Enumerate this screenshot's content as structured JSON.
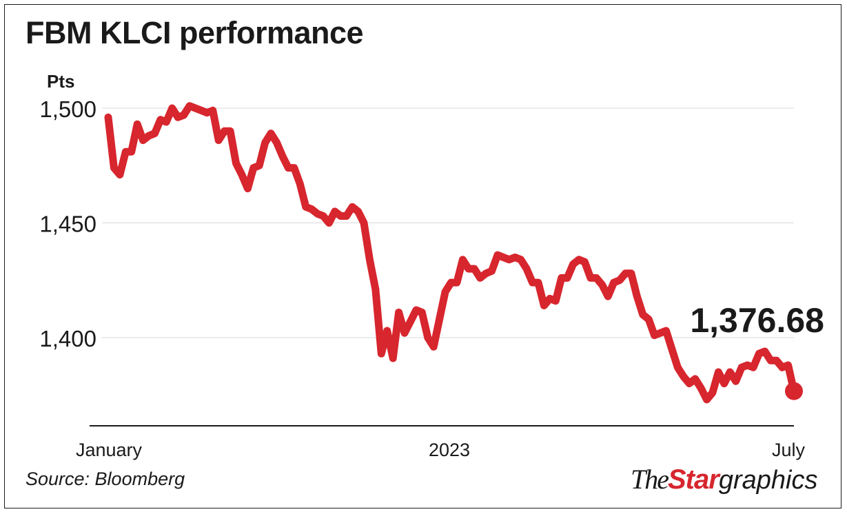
{
  "title": "FBM KLCI performance",
  "source": "Source: Bloomberg",
  "logo": {
    "the": "The",
    "star": "Star",
    "graphics": "graphics"
  },
  "colors": {
    "line": "#d7262e",
    "text": "#1a1a1a",
    "grid": "#d9d9d9",
    "axis": "#1a1a1a"
  },
  "chart_data": {
    "type": "line",
    "title": "FBM KLCI performance",
    "ylabel": "Pts",
    "xlabel": "",
    "ylim": [
      1366,
      1500
    ],
    "yticks": [
      1400,
      1450,
      1500
    ],
    "ytick_labels": [
      "1,400",
      "1,450",
      "1,500"
    ],
    "x_ticks": [
      {
        "label": "January",
        "pos": 0
      },
      {
        "label": "2023",
        "pos": 0.5
      },
      {
        "label": "July",
        "pos": 1
      }
    ],
    "grid": true,
    "end_label": "1,376.68",
    "series": [
      {
        "values": [
          1496,
          1474,
          1471,
          1481,
          1481,
          1493,
          1486,
          1488,
          1489,
          1495,
          1494,
          1500,
          1496,
          1497,
          1501,
          1500,
          1499,
          1498,
          1499,
          1486,
          1490,
          1490,
          1476,
          1471,
          1465,
          1474,
          1475,
          1485,
          1489,
          1485,
          1479,
          1474,
          1474,
          1467,
          1457,
          1456,
          1454,
          1453,
          1450,
          1455,
          1453,
          1453,
          1457,
          1455,
          1450,
          1434,
          1421,
          1393,
          1403,
          1391,
          1411,
          1402,
          1407,
          1412,
          1411,
          1400,
          1396,
          1408,
          1420,
          1424,
          1424,
          1434,
          1430,
          1430,
          1426,
          1428,
          1429,
          1436,
          1435,
          1434,
          1435,
          1434,
          1430,
          1424,
          1424,
          1414,
          1417,
          1416,
          1426,
          1426,
          1432,
          1434,
          1433,
          1426,
          1426,
          1423,
          1418,
          1424,
          1425,
          1428,
          1428,
          1418,
          1410,
          1408,
          1401,
          1402,
          1403,
          1395,
          1387,
          1383,
          1380,
          1382,
          1378,
          1373,
          1376,
          1385,
          1380,
          1385,
          1381,
          1387,
          1388,
          1387,
          1393,
          1394,
          1390,
          1390,
          1387,
          1388,
          1376.68
        ]
      }
    ]
  }
}
